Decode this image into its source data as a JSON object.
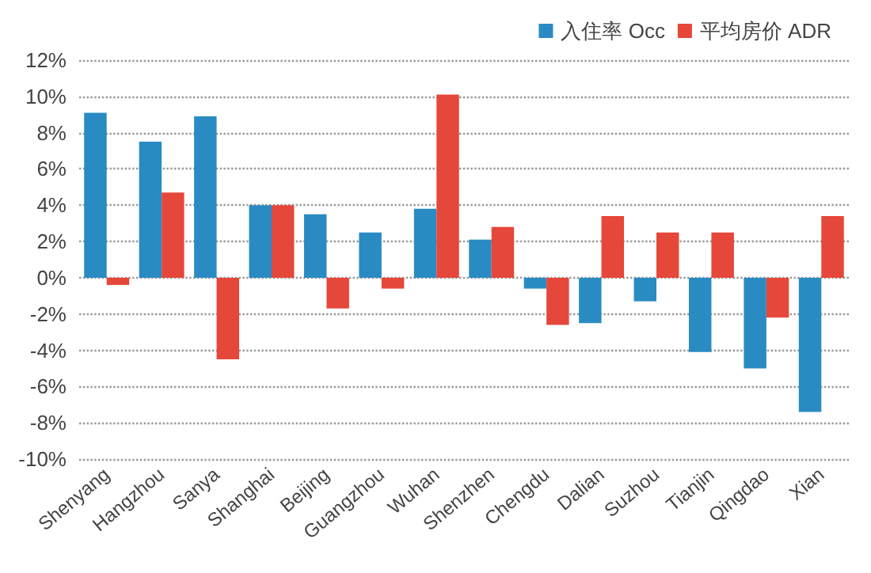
{
  "chart_data": {
    "type": "bar",
    "categories": [
      "Shenyang",
      "Hangzhou",
      "Sanya",
      "Shanghai",
      "Beijing",
      "Guangzhou",
      "Wuhan",
      "Shenzhen",
      "Chengdu",
      "Dalian",
      "Suzhou",
      "Tianjin",
      "Qingdao",
      "Xian"
    ],
    "series": [
      {
        "name": "入住率 Occ",
        "color": "#2a8bc3",
        "values": [
          9.1,
          7.5,
          8.9,
          4.0,
          3.5,
          2.5,
          3.8,
          2.1,
          -0.6,
          -2.5,
          -1.3,
          -4.1,
          -5.0,
          -7.4
        ]
      },
      {
        "name": "平均房价 ADR",
        "color": "#e5473a",
        "values": [
          -0.4,
          4.7,
          -4.5,
          4.0,
          -1.7,
          -0.6,
          10.1,
          2.8,
          -2.6,
          3.4,
          2.5,
          2.5,
          -2.2,
          3.4
        ]
      }
    ],
    "ylim": [
      -10,
      12
    ],
    "yticks": [
      {
        "value": -10,
        "label": "-10%"
      },
      {
        "value": -8,
        "label": "-8%"
      },
      {
        "value": -6,
        "label": "-6%"
      },
      {
        "value": -4,
        "label": "-4%"
      },
      {
        "value": -2,
        "label": "-2%"
      },
      {
        "value": 0,
        "label": "0%"
      },
      {
        "value": 2,
        "label": "2%"
      },
      {
        "value": 4,
        "label": "4%"
      },
      {
        "value": 6,
        "label": "6%"
      },
      {
        "value": 8,
        "label": "8%"
      },
      {
        "value": 10,
        "label": "10%"
      },
      {
        "value": 12,
        "label": "12%"
      }
    ],
    "grid": "y",
    "legend": "top right",
    "line_style": "dotted"
  }
}
